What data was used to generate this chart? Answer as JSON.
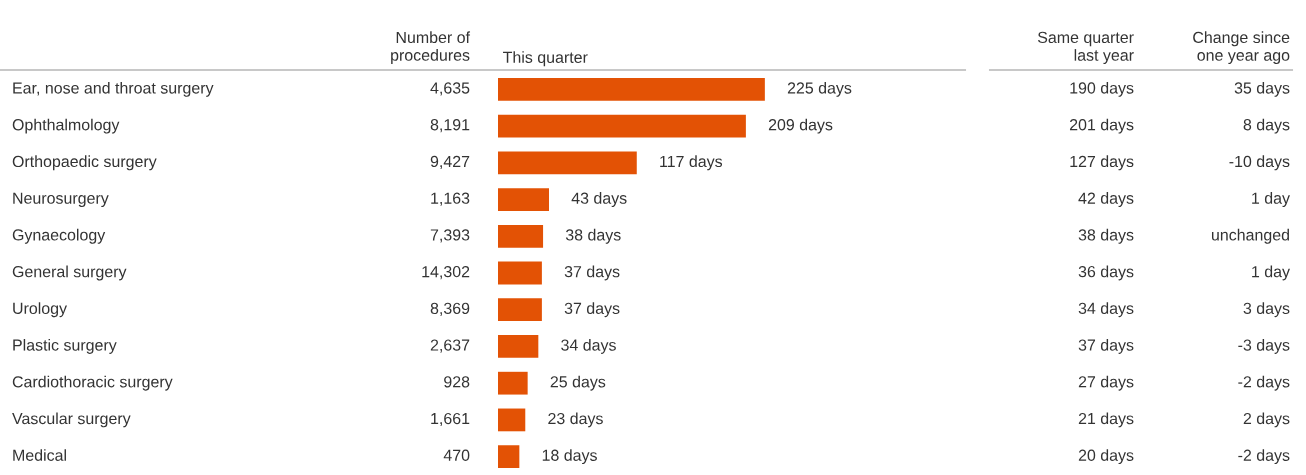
{
  "chart_data": {
    "type": "bar",
    "orientation": "horizontal",
    "xlabel": "This quarter",
    "color": "#e35205",
    "categories": [
      "Ear, nose and throat surgery",
      "Ophthalmology",
      "Orthopaedic surgery",
      "Neurosurgery",
      "Gynaecology",
      "General surgery",
      "Urology",
      "Plastic surgery",
      "Cardiothoracic surgery",
      "Vascular surgery",
      "Medical"
    ],
    "values": [
      225,
      209,
      117,
      43,
      38,
      37,
      37,
      34,
      25,
      23,
      18
    ],
    "value_labels": [
      "225 days",
      "209 days",
      "117 days",
      "43 days",
      "38 days",
      "37 days",
      "37 days",
      "34 days",
      "25 days",
      "23 days",
      "18 days"
    ],
    "annotations": [
      "Number of\nprocedures",
      "4,635",
      "8,191",
      "9,427",
      "1,163",
      "7,393",
      "14,302",
      "8,369",
      "2,637",
      "928",
      "1,661",
      "470",
      "Same quarter\nlast year",
      "190 days",
      "201 days",
      "127 days",
      "42 days",
      "38 days",
      "36 days",
      "34 days",
      "37 days",
      "27 days",
      "21 days",
      "20 days",
      "Change since\none year ago",
      "35 days",
      "8 days",
      "-10 days",
      "1 day",
      "unchanged",
      "1 day",
      "3 days",
      "-3 days",
      "-2 days",
      "2 days",
      "-2 days"
    ]
  }
}
